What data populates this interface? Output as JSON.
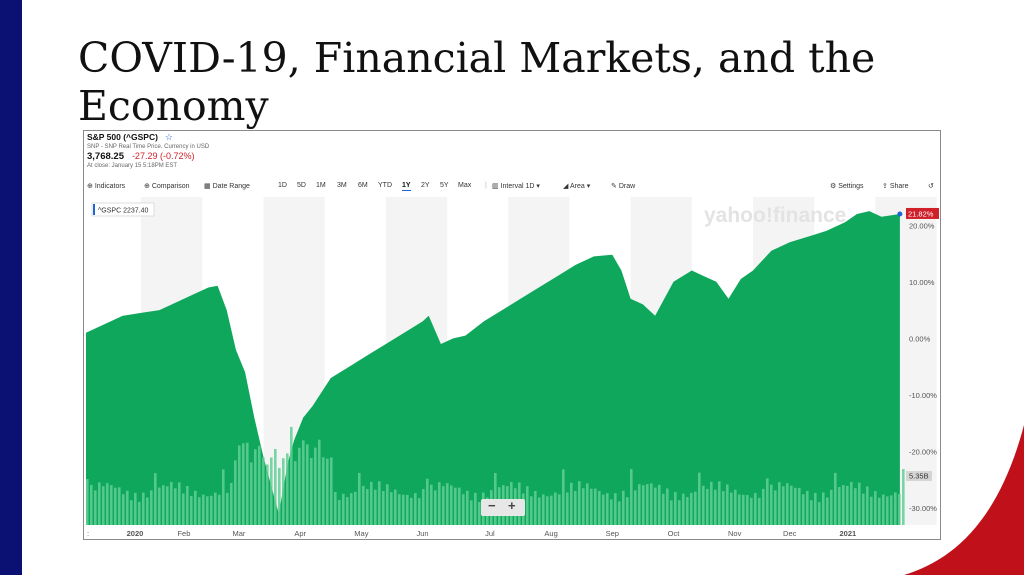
{
  "slide": {
    "title": "COVID-19, Financial Markets, and the Economy"
  },
  "quote": {
    "symbol_label": "S&P 500 (^GSPC)",
    "source": "SNP - SNP Real Time Price. Currency in USD",
    "price": "3,768.25",
    "change": "-27.29 (-0.72%)",
    "close_time": "At close: January 15 5:18PM EST"
  },
  "toolbar": {
    "indicators": "Indicators",
    "comparison": "Comparison",
    "date_range": "Date Range",
    "ranges": [
      "1D",
      "5D",
      "1M",
      "3M",
      "6M",
      "YTD",
      "1Y",
      "2Y",
      "5Y",
      "Max"
    ],
    "active_range": "1Y",
    "interval": "Interval",
    "interval_value": "1D",
    "area": "Area",
    "draw": "Draw",
    "settings": "Settings",
    "share": "Share"
  },
  "watermark": "yahoo!finance",
  "legend_chip": "^GSPC 2237.40",
  "last_change_label": "21.82%",
  "volume_label": "5.35B",
  "zoom": {
    "minus": "−",
    "plus": "+"
  },
  "colors": {
    "area": "#0fa75c",
    "volume": "#5fcf93",
    "change_flag": "#d0202a",
    "title_bar": "#0a1172",
    "accent": "#1e64d6",
    "swoosh": "#c0111b"
  },
  "chart_data": {
    "type": "area",
    "ylabel": "",
    "ylim": [
      -33,
      25
    ],
    "yticks": [
      "20.00%",
      "10.00%",
      "0.00%",
      "-10.00%",
      "-20.00%",
      "-30.00%"
    ],
    "yticks_values": [
      20,
      10,
      0,
      -10,
      -20,
      -30
    ],
    "x_tick_labels": [
      "2020",
      "Feb",
      "Mar",
      "Apr",
      "May",
      "Jun",
      "Jul",
      "Aug",
      "Sep",
      "Oct",
      "Nov",
      "Dec",
      "2021"
    ],
    "x_tick_positions": [
      0.8,
      1.6,
      2.5,
      3.5,
      4.5,
      5.5,
      6.6,
      7.6,
      8.6,
      9.6,
      10.6,
      11.5,
      12.45
    ],
    "x_range": [
      0,
      13.4
    ],
    "x_left_label": ":",
    "series": [
      {
        "x": [
          0,
          0.3,
          0.6,
          0.9,
          1.2,
          1.5,
          1.8,
          2.0,
          2.15,
          2.3,
          2.45,
          2.6,
          2.75,
          2.9,
          3.0,
          3.15,
          3.3,
          3.4,
          3.55,
          3.7,
          4.0,
          4.3,
          4.6,
          4.9,
          5.2,
          5.5,
          5.6,
          5.8,
          6.0,
          6.2,
          6.5,
          6.8,
          7.1,
          7.4,
          7.7,
          8.0,
          8.3,
          8.6,
          8.75,
          8.9,
          9.1,
          9.3,
          9.6,
          9.9,
          10.1,
          10.3,
          10.5,
          10.7,
          10.9,
          11.2,
          11.5,
          11.8,
          12.1,
          12.4,
          12.6,
          12.8,
          13.0,
          13.3
        ],
        "values": [
          1,
          2.5,
          4,
          4.5,
          5,
          6.5,
          8,
          9,
          9.3,
          5,
          -2,
          -6,
          -14,
          -21,
          -25,
          -31,
          -22,
          -18,
          -14,
          -12,
          -7,
          -5,
          -3,
          -1,
          1,
          3,
          4,
          -1,
          0,
          0.5,
          3,
          5,
          7,
          9,
          11,
          13,
          14.5,
          14.8,
          12,
          7,
          6,
          4,
          10,
          12,
          11,
          10,
          7,
          10.5,
          12,
          15.5,
          17,
          18,
          19,
          20.5,
          22,
          22.5,
          21.5,
          22
        ]
      }
    ]
  }
}
